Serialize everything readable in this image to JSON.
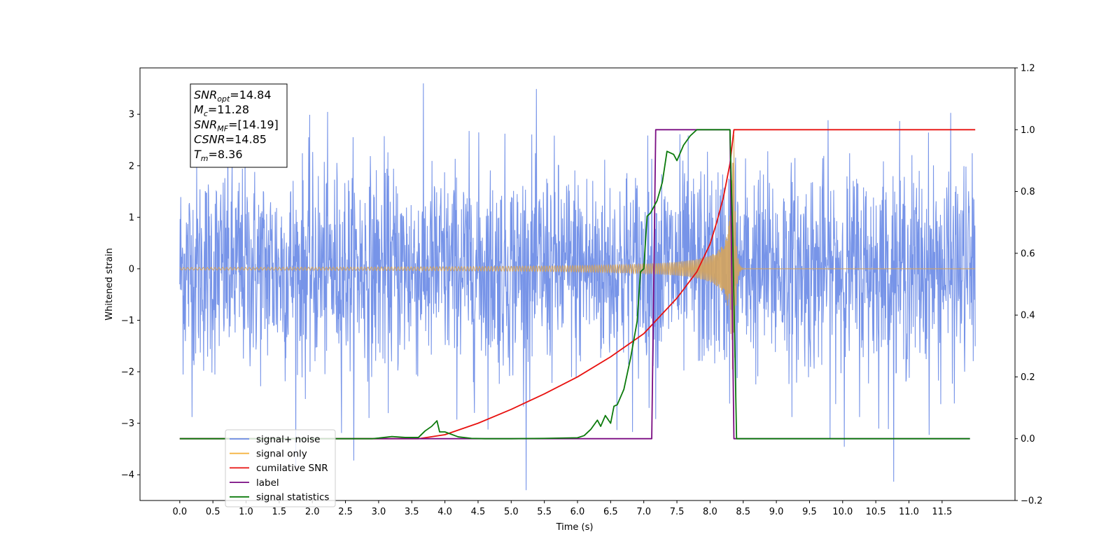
{
  "chart_data": {
    "type": "line",
    "xlabel": "Time (s)",
    "ylabel": "Whitened strain",
    "xlim": [
      -0.6,
      12.6
    ],
    "ylim_left": [
      -4.5,
      3.9
    ],
    "ylim_right": [
      -0.2,
      1.2
    ],
    "x_ticks": [
      "0.0",
      "0.5",
      "1.0",
      "1.5",
      "2.0",
      "2.5",
      "3.0",
      "3.5",
      "4.0",
      "4.5",
      "5.0",
      "5.5",
      "6.0",
      "6.5",
      "7.0",
      "7.5",
      "8.0",
      "8.5",
      "9.0",
      "9.5",
      "10.0",
      "10.5",
      "11.0",
      "11.5"
    ],
    "left_ticks": [
      "3",
      "2",
      "1",
      "0",
      "−1",
      "−2",
      "−3",
      "−4"
    ],
    "right_ticks": [
      "1.2",
      "1.0",
      "0.8",
      "0.6",
      "0.4",
      "0.2",
      "0.0",
      "−0.2"
    ],
    "grid": false,
    "legend_position": "lower-left",
    "series": [
      {
        "name": "signal+ noise",
        "axis": "left",
        "color": "#6b8be6",
        "description": "whitened noise plus signal, roughly ±2.5 with peaks to ±3.5, over 0–12 s"
      },
      {
        "name": "signal only",
        "axis": "left",
        "color": "#f5b342",
        "chirp": {
          "t_start": 0.0,
          "t_merge": 8.36,
          "t_end": 12.0,
          "peak_amplitude": 2.6
        }
      },
      {
        "name": "cumilative SNR",
        "axis": "right",
        "color": "#e8110f",
        "x": [
          0.0,
          3.6,
          4.0,
          4.5,
          5.0,
          5.5,
          6.0,
          6.5,
          7.0,
          7.5,
          7.8,
          8.0,
          8.1,
          8.2,
          8.3,
          8.36,
          12.0
        ],
        "y": [
          0.0,
          0.0,
          0.013,
          0.05,
          0.095,
          0.145,
          0.2,
          0.265,
          0.34,
          0.455,
          0.54,
          0.63,
          0.7,
          0.78,
          0.89,
          1.0,
          1.0
        ]
      },
      {
        "name": "label",
        "axis": "right",
        "color": "#7a0c82",
        "x": [
          0.0,
          7.12,
          7.18,
          8.3,
          8.36,
          8.42,
          11.92
        ],
        "y": [
          0.0,
          0.0,
          1.0,
          1.0,
          0.0,
          0.0,
          0.0
        ]
      },
      {
        "name": "signal statistics",
        "axis": "right",
        "color": "#0b7a0b",
        "x": [
          0.0,
          2.9,
          3.0,
          3.2,
          3.4,
          3.6,
          3.7,
          3.8,
          3.88,
          3.92,
          4.0,
          4.2,
          4.4,
          4.6,
          5.0,
          5.5,
          6.0,
          6.1,
          6.2,
          6.3,
          6.35,
          6.42,
          6.5,
          6.55,
          6.6,
          6.7,
          6.8,
          6.9,
          6.95,
          7.0,
          7.05,
          7.1,
          7.2,
          7.28,
          7.35,
          7.45,
          7.5,
          7.6,
          7.7,
          7.8,
          8.3,
          8.34,
          8.4,
          8.45,
          11.92
        ],
        "y": [
          0.0,
          0.0,
          0.002,
          0.007,
          0.004,
          0.004,
          0.025,
          0.04,
          0.058,
          0.022,
          0.022,
          0.006,
          0.001,
          0.0,
          0.0,
          0.001,
          0.003,
          0.01,
          0.03,
          0.06,
          0.04,
          0.075,
          0.05,
          0.105,
          0.11,
          0.16,
          0.26,
          0.38,
          0.54,
          0.55,
          0.72,
          0.73,
          0.77,
          0.83,
          0.93,
          0.92,
          0.9,
          0.95,
          0.98,
          1.0,
          1.0,
          0.67,
          0.0,
          0.0,
          0.0
        ]
      }
    ],
    "info_box": {
      "lines": [
        {
          "main": "SNR",
          "sub": "opt",
          "value": "=14.84"
        },
        {
          "main": "M",
          "sub": "c",
          "value": "=11.28"
        },
        {
          "main": "SNR",
          "sub": "MF",
          "value": "=[14.19]"
        },
        {
          "main": "CSNR",
          "sub": "",
          "value": "=14.85"
        },
        {
          "main": "T",
          "sub": "m",
          "value": "=8.36"
        }
      ]
    },
    "legend": [
      {
        "label": "signal+ noise",
        "color": "#6b8be6"
      },
      {
        "label": "signal only",
        "color": "#f5b342"
      },
      {
        "label": "cumilative SNR",
        "color": "#e8110f"
      },
      {
        "label": "label",
        "color": "#7a0c82"
      },
      {
        "label": "signal statistics",
        "color": "#0b7a0b"
      }
    ]
  }
}
